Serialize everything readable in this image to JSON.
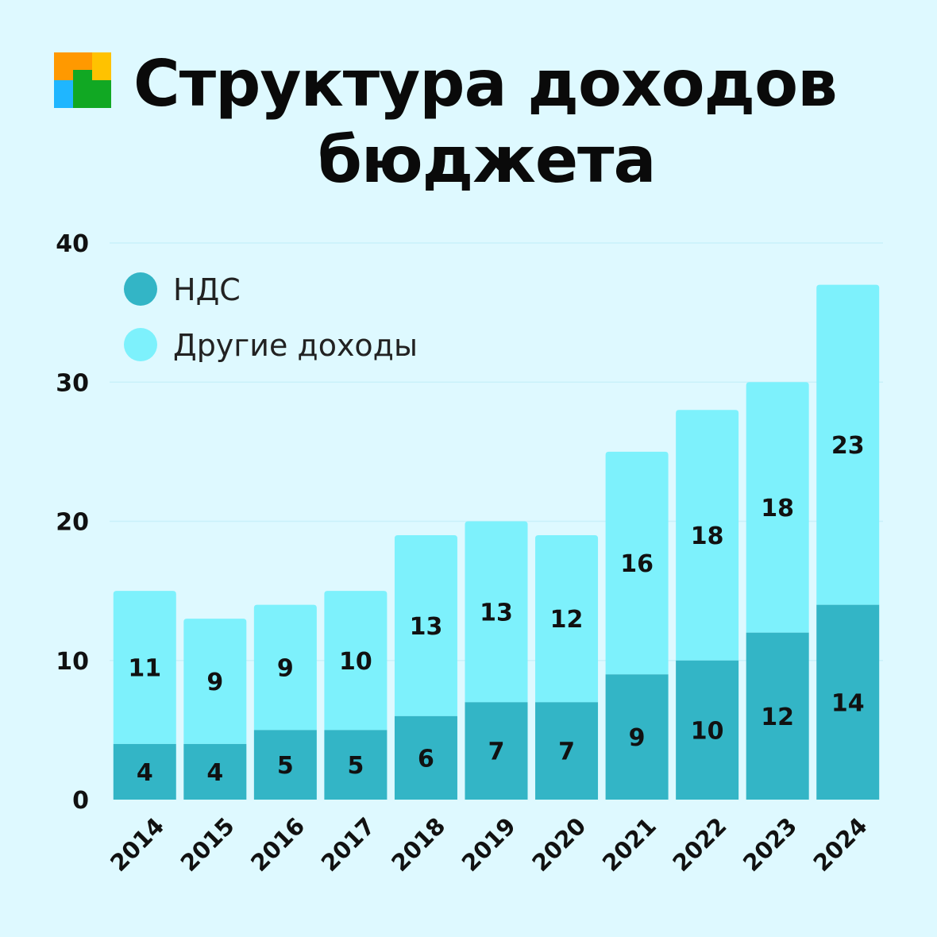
{
  "title": {
    "line1": "Структура доходов",
    "line2": "бюджета"
  },
  "logo": {
    "icon": "four-square-logo-icon",
    "colors": [
      "#ff9900",
      "#ffc200",
      "#1fb6ff",
      "#11a823"
    ]
  },
  "colors": {
    "background": "#def9ff",
    "vat": "#33b5c6",
    "other": "#7df1fc"
  },
  "chart_data": {
    "type": "bar",
    "stacked": true,
    "categories": [
      "2014",
      "2015",
      "2016",
      "2017",
      "2018",
      "2019",
      "2020",
      "2021",
      "2022",
      "2023",
      "2024"
    ],
    "series": [
      {
        "name": "НДС",
        "values": [
          4,
          4,
          5,
          5,
          6,
          7,
          7,
          9,
          10,
          12,
          14
        ]
      },
      {
        "name": "Другие доходы",
        "values": [
          11,
          9,
          9,
          10,
          13,
          13,
          12,
          16,
          18,
          18,
          23
        ]
      }
    ],
    "ylim": [
      0,
      40
    ],
    "yticks": [
      0,
      10,
      20,
      30,
      40
    ],
    "grid": true,
    "legend_position": "top-left"
  }
}
